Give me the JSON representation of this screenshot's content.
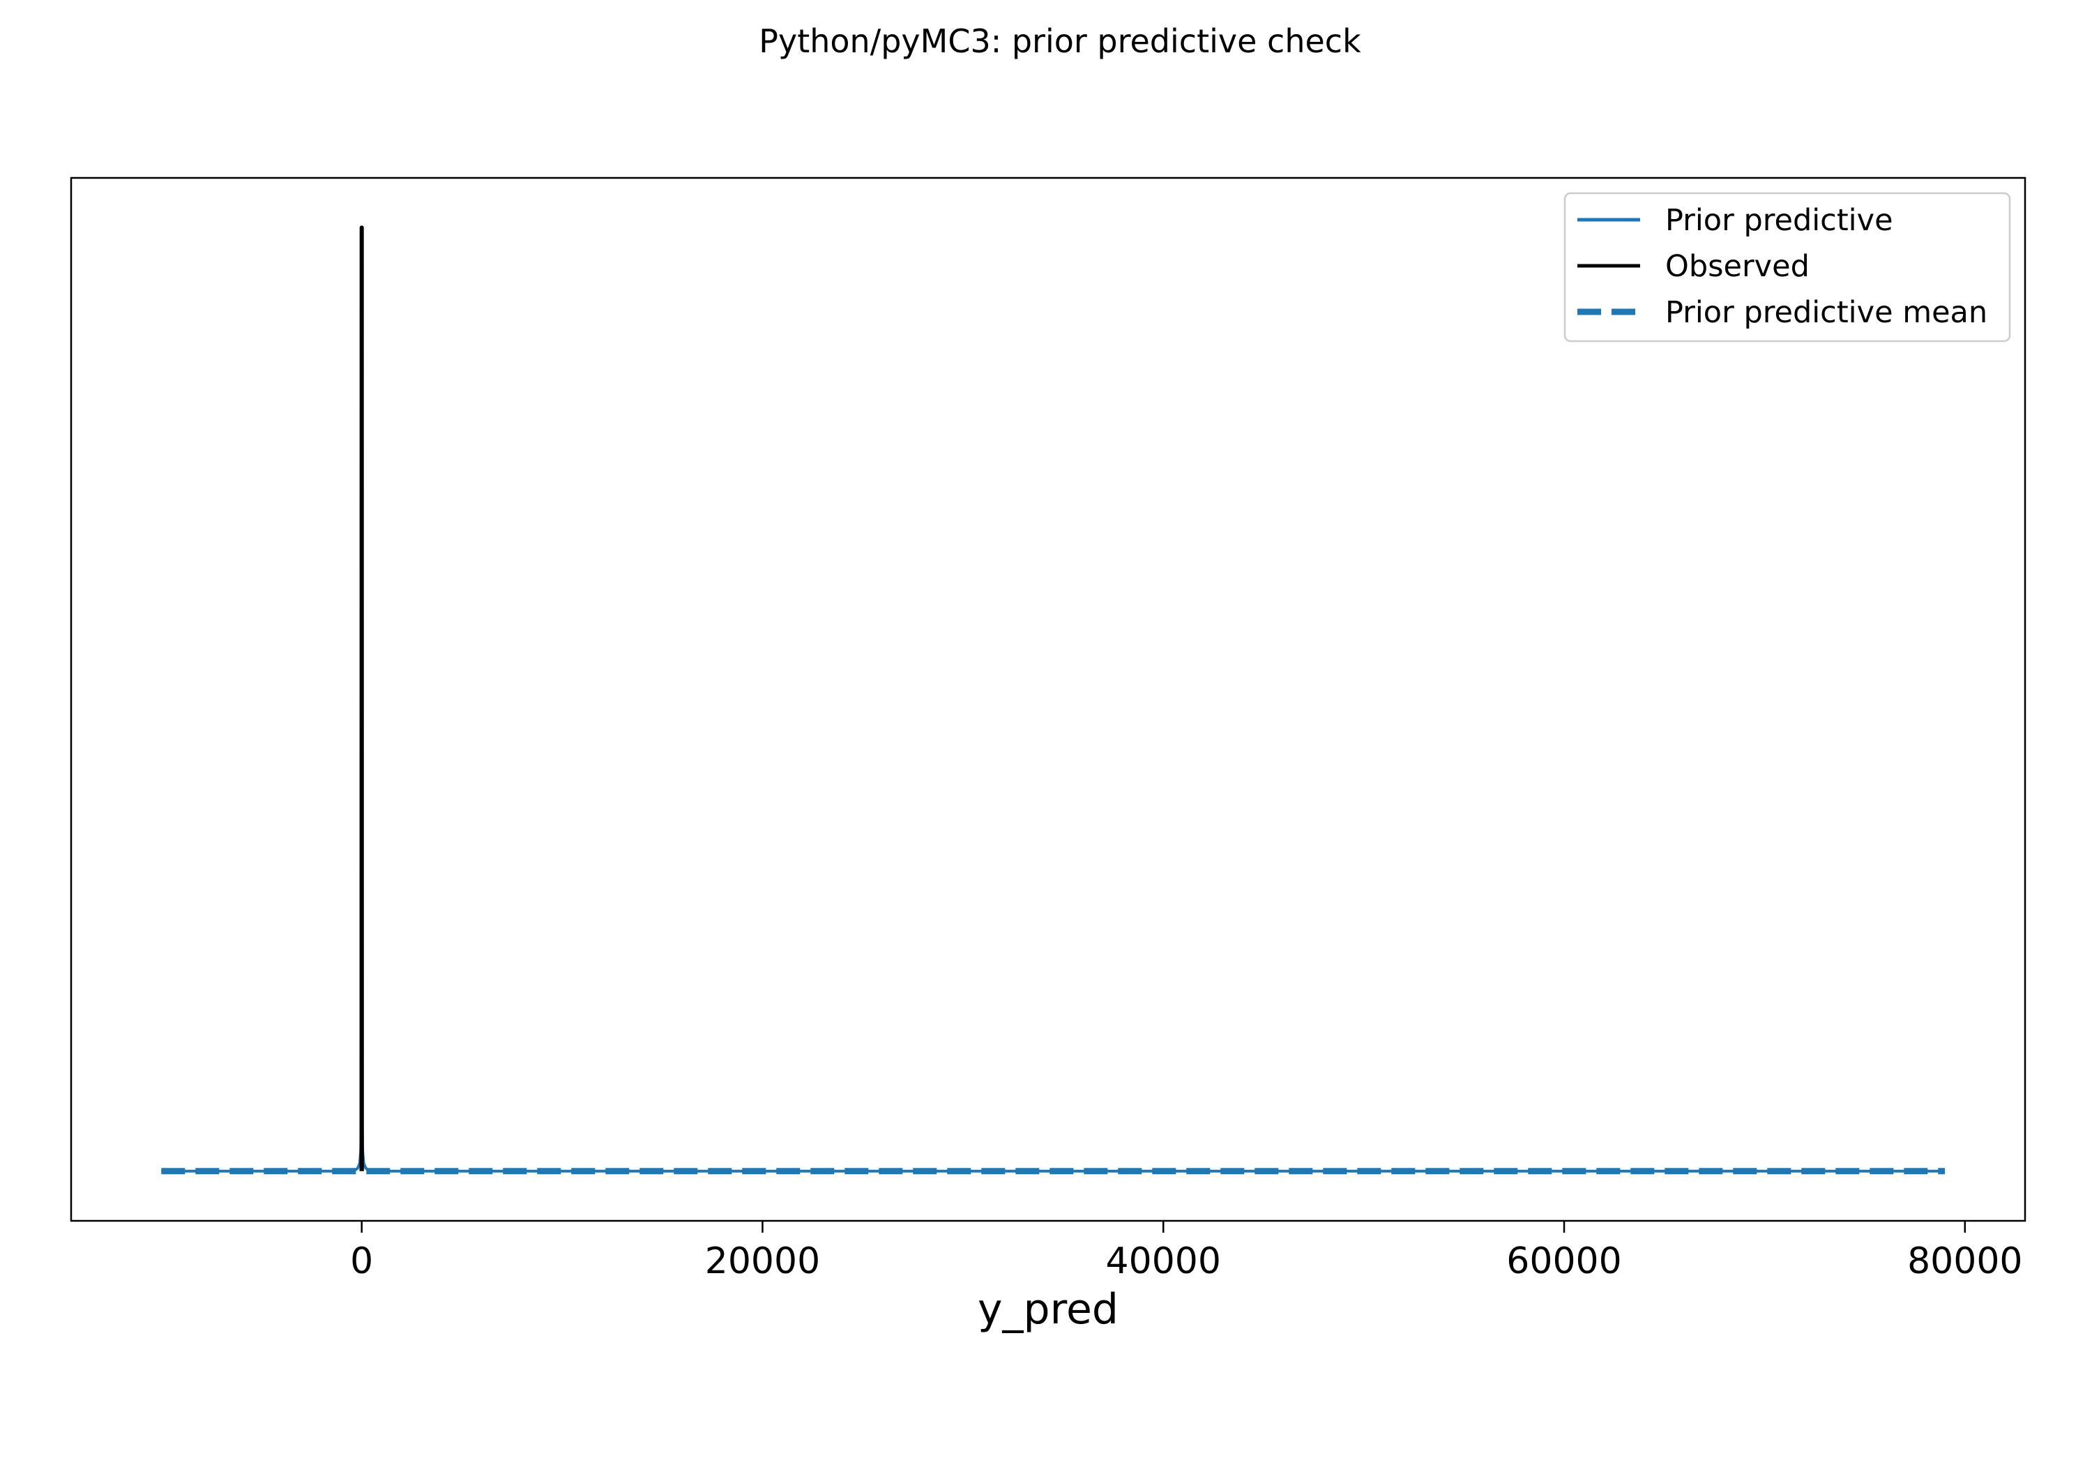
{
  "chart_data": {
    "type": "line",
    "title": "Python/pyMC3: prior predictive check",
    "xlabel": "y_pred",
    "ylabel": "",
    "xlim": [
      -14500,
      83000
    ],
    "ylim": [
      -0.05,
      1.0
    ],
    "x_ticks": [
      0,
      20000,
      40000,
      60000,
      80000
    ],
    "x_tick_labels": [
      "0",
      "20000",
      "40000",
      "60000",
      "80000"
    ],
    "y_ticks_shown": false,
    "grid": false,
    "legend_position": "top-right",
    "series": [
      {
        "name": "Prior predictive",
        "color": "#1f77b4",
        "style": "solid",
        "points": [
          [
            -10000,
            0.0
          ],
          [
            -400,
            0.0
          ],
          [
            -200,
            0.003
          ],
          [
            -100,
            0.008
          ],
          [
            -50,
            0.02
          ],
          [
            -20,
            0.05
          ],
          [
            -5,
            0.09
          ],
          [
            0,
            0.11
          ],
          [
            5,
            0.09
          ],
          [
            20,
            0.05
          ],
          [
            50,
            0.02
          ],
          [
            100,
            0.008
          ],
          [
            200,
            0.003
          ],
          [
            400,
            0.0
          ],
          [
            79000,
            0.0
          ]
        ]
      },
      {
        "name": "Observed",
        "color": "#000000",
        "style": "solid",
        "points": [
          [
            -5,
            0.0
          ],
          [
            0,
            0.95
          ],
          [
            5,
            0.0
          ]
        ]
      },
      {
        "name": "Prior predictive mean",
        "color": "#1f77b4",
        "style": "dashed",
        "points": [
          [
            -10000,
            0.0
          ],
          [
            79000,
            0.0
          ]
        ]
      }
    ]
  }
}
